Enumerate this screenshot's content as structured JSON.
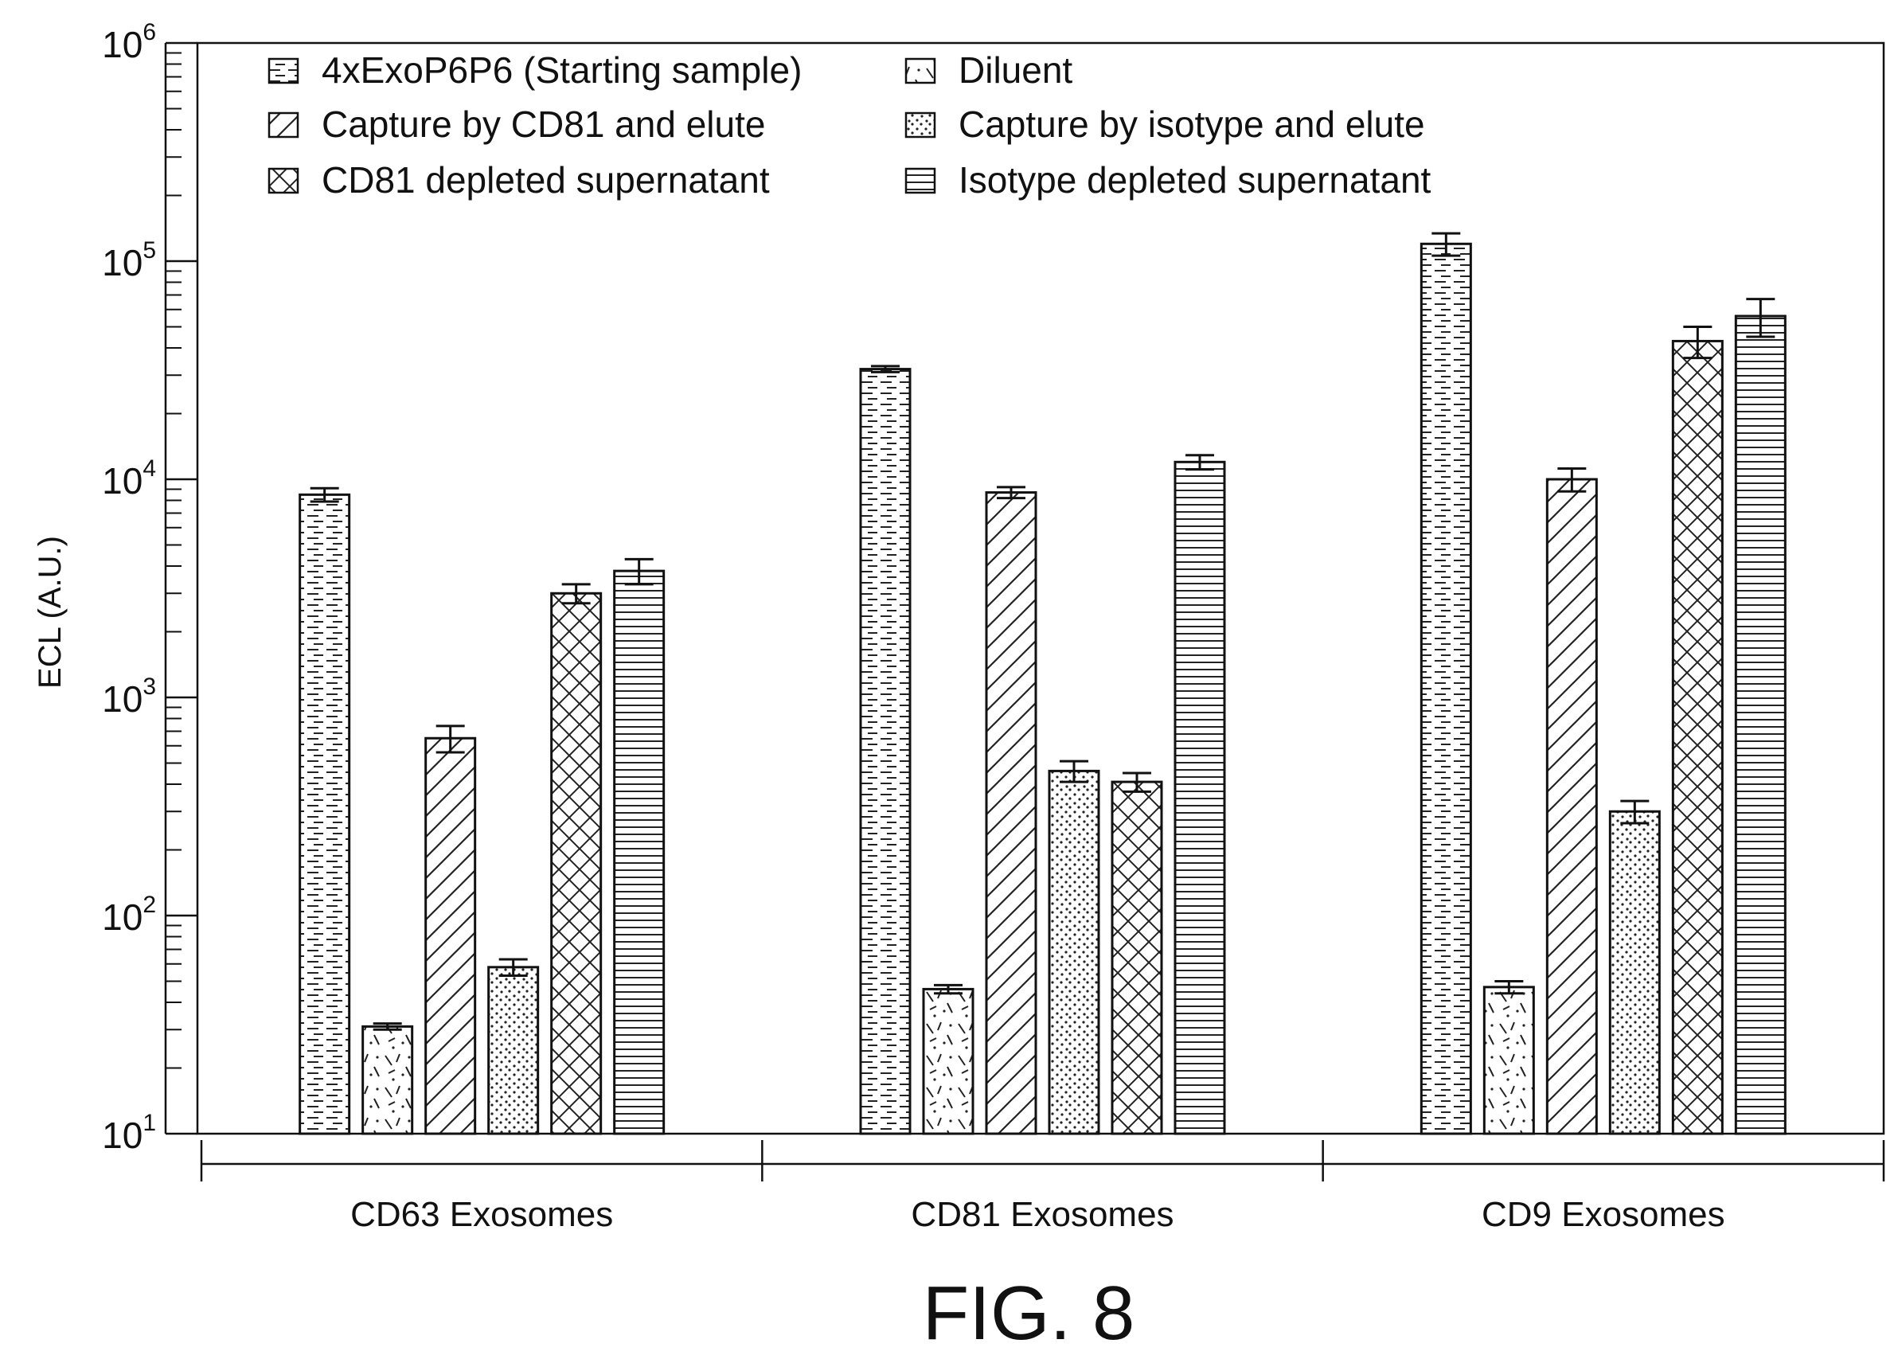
{
  "chart_data": {
    "type": "bar",
    "y_scale": "log",
    "ylabel": "ECL (A.U.)",
    "xlabel": "",
    "title": "",
    "ylim": [
      10,
      1000000
    ],
    "y_ticks": [
      {
        "value": 10,
        "base": "10",
        "exp": "1"
      },
      {
        "value": 100,
        "base": "10",
        "exp": "2"
      },
      {
        "value": 1000,
        "base": "10",
        "exp": "3"
      },
      {
        "value": 10000,
        "base": "10",
        "exp": "4"
      },
      {
        "value": 100000,
        "base": "10",
        "exp": "5"
      },
      {
        "value": 1000000,
        "base": "10",
        "exp": "6"
      }
    ],
    "categories": [
      "CD63 Exosomes",
      "CD81 Exosomes",
      "CD9 Exosomes"
    ],
    "legend_position": "top-left",
    "grid": false,
    "series": [
      {
        "name": "4xExoP6P6 (Starting sample)",
        "pattern": "horizontal-dashes",
        "values": [
          8500,
          32000,
          120000
        ],
        "errors": [
          600,
          1000,
          14000
        ]
      },
      {
        "name": "Diluent",
        "pattern": "scattered-strokes",
        "values": [
          31,
          46,
          47
        ],
        "errors": [
          1,
          2,
          3
        ]
      },
      {
        "name": "Capture by CD81 and elute",
        "pattern": "diagonal-lines",
        "values": [
          650,
          8700,
          10000
        ],
        "errors": [
          90,
          500,
          1200
        ]
      },
      {
        "name": "Capture by isotype and elute",
        "pattern": "dotted-diagonal",
        "values": [
          58,
          460,
          300
        ],
        "errors": [
          5,
          50,
          35
        ]
      },
      {
        "name": "CD81 depleted supernatant",
        "pattern": "crosshatch",
        "values": [
          3000,
          410,
          43000
        ],
        "errors": [
          300,
          40,
          7000
        ]
      },
      {
        "name": "Isotype depleted supernatant",
        "pattern": "horizontal-lines",
        "values": [
          3800,
          12000,
          56000
        ],
        "errors": [
          500,
          900,
          11000
        ]
      }
    ]
  },
  "figure": {
    "caption": "FIG. 8"
  }
}
